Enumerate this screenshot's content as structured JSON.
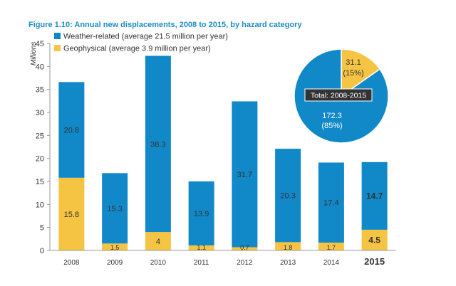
{
  "colors": {
    "weather": "#1188c8",
    "geophysical": "#f6c443",
    "title": "#1a8dc4",
    "axis_text": "#333333",
    "bar_label": "#333333",
    "grid": "#bdbdbd",
    "callout_bg": "#333333",
    "callout_text": "#ffffff"
  },
  "chart_data": {
    "type": "bar",
    "stacked": true,
    "title": "Figure 1.10: Annual new displacements, 2008 to 2015, by hazard category",
    "ylabel": "Millions",
    "xlabel": "",
    "ylim": [
      0,
      45
    ],
    "yticks": [
      "0",
      "5",
      "10",
      "15",
      "20",
      "25",
      "30",
      "35",
      "40",
      "45"
    ],
    "grid": false,
    "legend_position": "top-left",
    "categories": [
      "2008",
      "2009",
      "2010",
      "2011",
      "2012",
      "2013",
      "2014",
      "2015"
    ],
    "highlight_category": "2015",
    "series": [
      {
        "name": "Geophysical (average 3.9 million per year)",
        "key": "geophysical",
        "values": [
          15.8,
          1.5,
          4,
          1.1,
          0.7,
          1.8,
          1.7,
          4.5
        ],
        "labels": [
          "15.8",
          "1.5",
          "4",
          "1.1",
          "0.7",
          "1.8",
          "1.7",
          "4.5"
        ]
      },
      {
        "name": "Weather-related (average 21.5 million per year)",
        "key": "weather",
        "values": [
          20.8,
          15.3,
          38.3,
          13.9,
          31.7,
          20.3,
          17.4,
          14.7
        ],
        "labels": [
          "20.8",
          "15.3",
          "38.3",
          "13.9",
          "31.7",
          "20.3",
          "17.4",
          "14.7"
        ]
      }
    ],
    "legend": [
      "Weather-related (average 21.5 million per year)",
      "Geophysical (average 3.9 million per year)"
    ],
    "inset_pie": {
      "type": "pie",
      "title": "Total: 2008-2015",
      "slices": [
        {
          "key": "weather",
          "value": 172.3,
          "label": "172.3",
          "percent_label": "(85%)"
        },
        {
          "key": "geophysical",
          "value": 31.1,
          "label": "31.1",
          "percent_label": "(15%)"
        }
      ]
    }
  }
}
